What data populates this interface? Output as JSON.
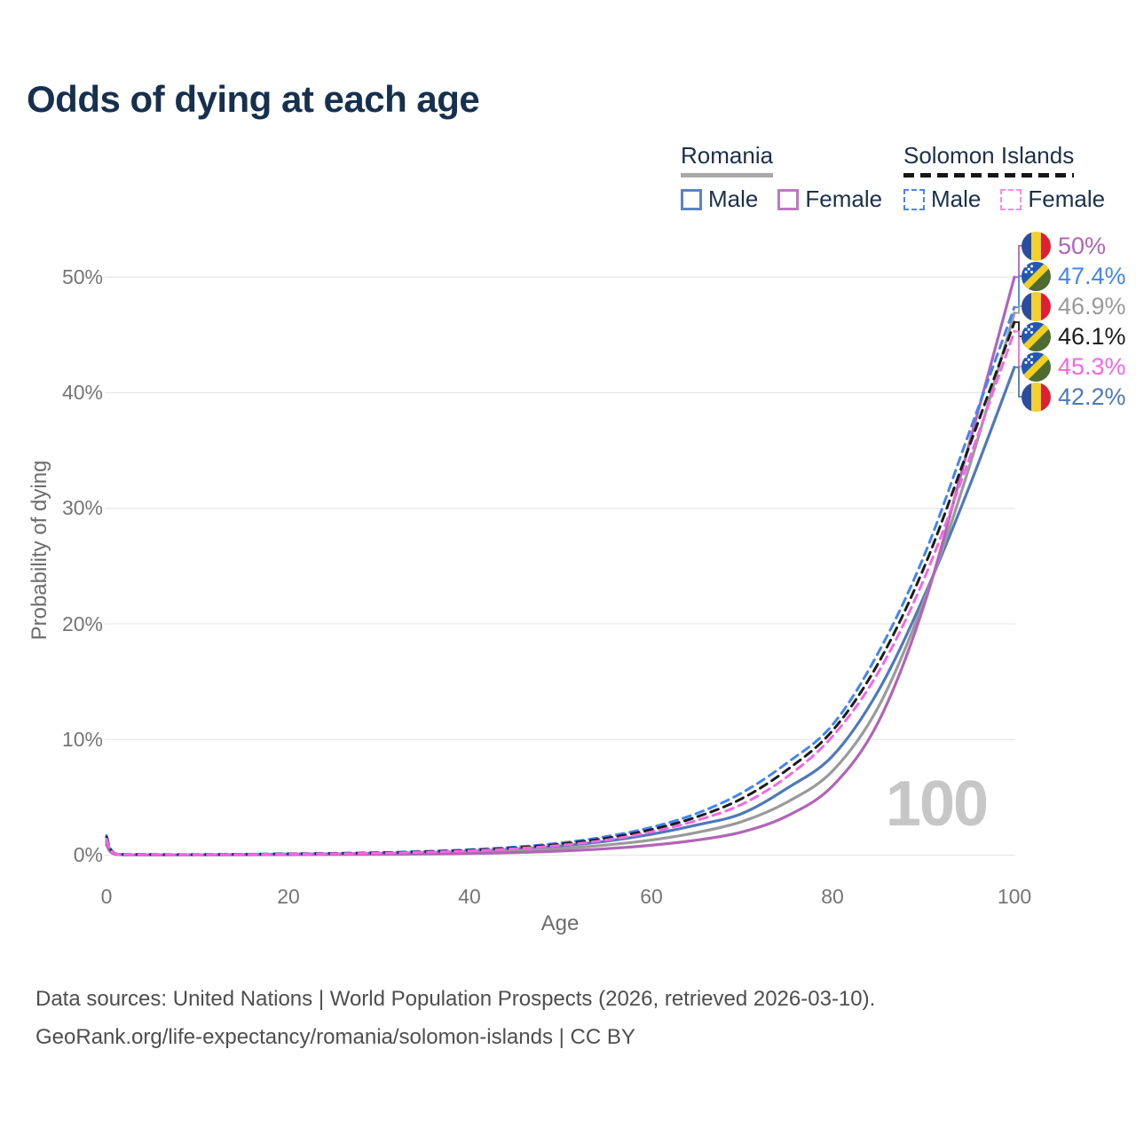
{
  "title": "Odds of dying at each age",
  "watermark": "100",
  "legend": {
    "romania": {
      "title": "Romania",
      "male_label": "Male",
      "female_label": "Female"
    },
    "solomon_islands": {
      "title": "Solomon Islands",
      "male_label": "Male",
      "female_label": "Female"
    }
  },
  "colors": {
    "romania_male": "#4e79b8",
    "romania_female": "#b164b8",
    "romania_both": "#9a9a9a",
    "si_male": "#4285f4",
    "si_female": "#f666e6",
    "si_both": "#1c1c1c",
    "title_text": "#16304e",
    "tick_text": "#757575",
    "gridline": "#e9e9e9",
    "watermark_text": "#c7c7c7"
  },
  "footer": {
    "line1": "Data sources: United Nations | World Population Prospects (2026, retrieved 2026-03-10).",
    "line2": "GeoRank.org/life-expectancy/romania/solomon-islands | CC BY"
  },
  "chart_data": {
    "type": "line",
    "title": "Odds of dying at each age",
    "xlabel": "Age",
    "ylabel": "Probability of dying",
    "xlim": [
      0,
      100
    ],
    "ylim_percent": [
      0,
      52
    ],
    "grid": "horizontal",
    "xtick_labels": [
      "0",
      "20",
      "40",
      "60",
      "80",
      "100"
    ],
    "ytick_labels": [
      "0%",
      "10%",
      "20%",
      "30%",
      "40%",
      "50%"
    ],
    "x": [
      0,
      1,
      5,
      10,
      15,
      20,
      25,
      30,
      35,
      40,
      45,
      50,
      55,
      60,
      65,
      70,
      75,
      80,
      85,
      90,
      95,
      100
    ],
    "series": [
      {
        "name": "Romania Male",
        "country": "Romania",
        "sex": "Male",
        "color": "#4e79b8",
        "dashed": false,
        "values_percent": [
          1.2,
          0.07,
          0.03,
          0.03,
          0.05,
          0.09,
          0.11,
          0.14,
          0.2,
          0.3,
          0.5,
          0.8,
          1.2,
          1.8,
          2.6,
          3.6,
          5.8,
          8.6,
          14.2,
          22.3,
          31.8,
          42.2
        ]
      },
      {
        "name": "Romania Both",
        "country": "Romania",
        "sex": "Both",
        "color": "#9a9a9a",
        "dashed": false,
        "values_percent": [
          1.05,
          0.065,
          0.025,
          0.025,
          0.04,
          0.065,
          0.08,
          0.1,
          0.15,
          0.22,
          0.36,
          0.57,
          0.87,
          1.3,
          1.95,
          2.9,
          4.6,
          7.3,
          12.8,
          21.9,
          33.5,
          46.9
        ]
      },
      {
        "name": "Romania Female",
        "country": "Romania",
        "sex": "Female",
        "color": "#b164b8",
        "dashed": false,
        "values_percent": [
          0.9,
          0.06,
          0.02,
          0.02,
          0.03,
          0.04,
          0.05,
          0.06,
          0.09,
          0.14,
          0.22,
          0.35,
          0.55,
          0.85,
          1.3,
          2.0,
          3.4,
          6.0,
          11.5,
          21.5,
          35.5,
          50.0
        ]
      },
      {
        "name": "Solomon Islands Male",
        "country": "Solomon Islands",
        "sex": "Male",
        "color": "#4285f4",
        "dashed": true,
        "values_percent": [
          1.7,
          0.12,
          0.06,
          0.05,
          0.08,
          0.12,
          0.16,
          0.22,
          0.32,
          0.47,
          0.7,
          1.05,
          1.6,
          2.4,
          3.6,
          5.4,
          8.0,
          11.3,
          17.5,
          25.8,
          36.5,
          47.4
        ]
      },
      {
        "name": "Solomon Islands Both",
        "country": "Solomon Islands",
        "sex": "Both",
        "color": "#1c1c1c",
        "dashed": true,
        "values_percent": [
          1.55,
          0.11,
          0.055,
          0.045,
          0.07,
          0.105,
          0.14,
          0.2,
          0.29,
          0.42,
          0.63,
          0.95,
          1.45,
          2.2,
          3.3,
          4.9,
          7.4,
          10.8,
          16.6,
          24.8,
          35.3,
          46.1
        ]
      },
      {
        "name": "Solomon Islands Female",
        "country": "Solomon Islands",
        "sex": "Female",
        "color": "#f666e6",
        "dashed": true,
        "values_percent": [
          1.4,
          0.1,
          0.05,
          0.04,
          0.06,
          0.09,
          0.12,
          0.17,
          0.25,
          0.37,
          0.56,
          0.85,
          1.3,
          2.0,
          3.0,
          4.4,
          6.8,
          10.3,
          15.8,
          23.8,
          34.2,
          45.3
        ]
      }
    ],
    "end_labels": [
      {
        "series": "Romania Female",
        "flag": "ro",
        "text": "50%",
        "value_percent": 50.0,
        "color": "#b164b8"
      },
      {
        "series": "Solomon Islands Male",
        "flag": "sb",
        "text": "47.4%",
        "value_percent": 47.4,
        "color": "#4285f4"
      },
      {
        "series": "Romania Both",
        "flag": "ro",
        "text": "46.9%",
        "value_percent": 46.9,
        "color": "#9a9a9a"
      },
      {
        "series": "Solomon Islands Both",
        "flag": "sb",
        "text": "46.1%",
        "value_percent": 46.1,
        "color": "#1c1c1c"
      },
      {
        "series": "Solomon Islands Female",
        "flag": "sb",
        "text": "45.3%",
        "value_percent": 45.3,
        "color": "#f666e6"
      },
      {
        "series": "Romania Male",
        "flag": "ro",
        "text": "42.2%",
        "value_percent": 42.2,
        "color": "#4e79b8"
      }
    ],
    "legend_position": "top-right"
  }
}
